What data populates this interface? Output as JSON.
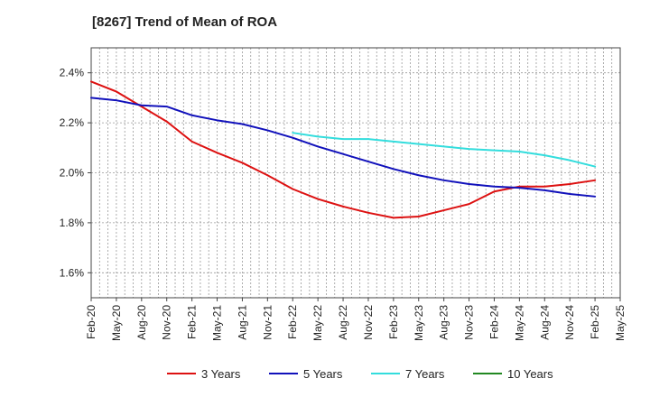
{
  "chart_data": {
    "type": "line",
    "title": "[8267]  Trend of Mean of ROA",
    "xlabel": "",
    "ylabel": "",
    "ylim": [
      1.5,
      2.5
    ],
    "y_ticks": [
      1.6,
      1.8,
      2.0,
      2.2,
      2.4
    ],
    "y_tick_labels": [
      "1.6%",
      "1.8%",
      "2.0%",
      "2.2%",
      "2.4%"
    ],
    "grid": true,
    "legend_position": "bottom",
    "categories": [
      "Feb-20",
      "May-20",
      "Aug-20",
      "Nov-20",
      "Feb-21",
      "May-21",
      "Aug-21",
      "Nov-21",
      "Feb-22",
      "May-22",
      "Aug-22",
      "Nov-22",
      "Feb-23",
      "May-23",
      "Aug-23",
      "Nov-23",
      "Feb-24",
      "May-24",
      "Aug-24",
      "Nov-24",
      "Feb-25",
      "May-25"
    ],
    "series": [
      {
        "name": "3 Years",
        "color": "#dd1111",
        "x": [
          0,
          1,
          2,
          3,
          4,
          5,
          6,
          7,
          8,
          9,
          10,
          11,
          12,
          13,
          14,
          15,
          16,
          17,
          18,
          19,
          20
        ],
        "values": [
          2.365,
          2.325,
          2.265,
          2.205,
          2.125,
          2.08,
          2.04,
          1.99,
          1.935,
          1.895,
          1.865,
          1.84,
          1.82,
          1.825,
          1.85,
          1.875,
          1.925,
          1.945,
          1.945,
          1.955,
          1.97
        ]
      },
      {
        "name": "5 Years",
        "color": "#1111bb",
        "x": [
          0,
          1,
          2,
          3,
          4,
          5,
          6,
          7,
          8,
          9,
          10,
          11,
          12,
          13,
          14,
          15,
          16,
          17,
          18,
          19,
          20
        ],
        "values": [
          2.3,
          2.29,
          2.27,
          2.265,
          2.23,
          2.21,
          2.195,
          2.17,
          2.14,
          2.105,
          2.075,
          2.045,
          2.015,
          1.99,
          1.97,
          1.955,
          1.945,
          1.94,
          1.93,
          1.915,
          1.905
        ]
      },
      {
        "name": "7 Years",
        "color": "#33dddd",
        "x": [
          8,
          9,
          10,
          11,
          12,
          13,
          14,
          15,
          16,
          17,
          18,
          19,
          20
        ],
        "values": [
          2.16,
          2.145,
          2.135,
          2.135,
          2.125,
          2.115,
          2.105,
          2.095,
          2.09,
          2.085,
          2.07,
          2.05,
          2.025
        ]
      },
      {
        "name": "10 Years",
        "color": "#228822",
        "x": [],
        "values": []
      }
    ]
  }
}
